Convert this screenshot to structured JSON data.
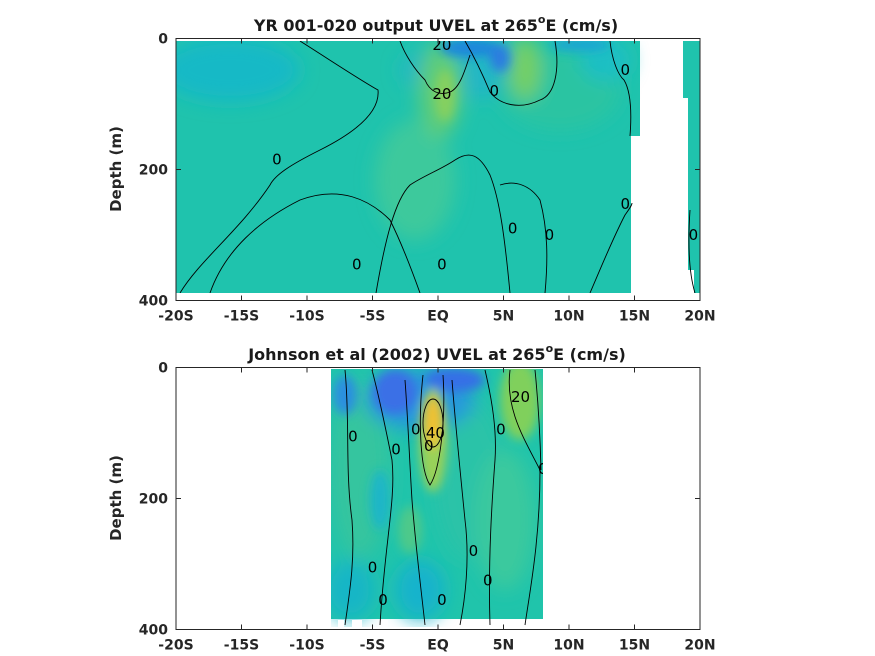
{
  "chart_data": [
    {
      "type": "heatmap",
      "title": "YR 001-020 output UVEL at 265",
      "title_sup": "o",
      "title_rest": "E (cm/s)",
      "xlabel": "",
      "ylabel": "Depth (m)",
      "xlim": [
        -20,
        20
      ],
      "ylim": [
        0,
        400
      ],
      "y_reversed": true,
      "x_ticks": [
        -20,
        -15,
        -10,
        -5,
        0,
        5,
        10,
        15,
        20
      ],
      "x_tick_labels": [
        "-20S",
        "-15S",
        "-10S",
        "-5S",
        "EQ",
        "5N",
        "10N",
        "15N",
        "20N"
      ],
      "y_ticks": [
        0,
        200,
        400
      ],
      "y_tick_labels": [
        "0",
        "200",
        "400"
      ],
      "contour_interval": 20,
      "contour_labels": [
        {
          "text": "20",
          "lat": 0.3,
          "depth": 10
        },
        {
          "text": "20",
          "lat": 0.3,
          "depth": 85
        },
        {
          "text": "0",
          "lat": -12.3,
          "depth": 185
        },
        {
          "text": "0",
          "lat": 4.3,
          "depth": 80
        },
        {
          "text": "0",
          "lat": 14.3,
          "depth": 48
        },
        {
          "text": "0",
          "lat": 14.3,
          "depth": 253
        },
        {
          "text": "0",
          "lat": 5.7,
          "depth": 290
        },
        {
          "text": "0",
          "lat": 8.5,
          "depth": 300
        },
        {
          "text": "0",
          "lat": -6.2,
          "depth": 345
        },
        {
          "text": "0",
          "lat": 0.3,
          "depth": 345
        },
        {
          "text": "0",
          "lat": 19.5,
          "depth": 300
        }
      ],
      "data_lat_range": [
        -19.8,
        14.9
      ],
      "data_depth_range": [
        0,
        388
      ]
    },
    {
      "type": "heatmap",
      "title": "Johnson et al (2002) UVEL at 265",
      "title_sup": "o",
      "title_rest": "E (cm/s)",
      "xlabel": "",
      "ylabel": "Depth (m)",
      "xlim": [
        -20,
        20
      ],
      "ylim": [
        0,
        400
      ],
      "y_reversed": true,
      "x_ticks": [
        -20,
        -15,
        -10,
        -5,
        0,
        5,
        10,
        15,
        20
      ],
      "x_tick_labels": [
        "-20S",
        "-15S",
        "-10S",
        "-5S",
        "EQ",
        "5N",
        "10N",
        "15N",
        "20N"
      ],
      "y_ticks": [
        0,
        200,
        400
      ],
      "y_tick_labels": [
        "0",
        "200",
        "400"
      ],
      "contour_interval": 20,
      "contour_labels": [
        {
          "text": "20",
          "lat": 6.3,
          "depth": 45
        },
        {
          "text": "40",
          "lat": -0.2,
          "depth": 100
        },
        {
          "text": "0",
          "lat": -6.5,
          "depth": 105
        },
        {
          "text": "0",
          "lat": -3.2,
          "depth": 125
        },
        {
          "text": "0",
          "lat": -1.7,
          "depth": 95
        },
        {
          "text": "0",
          "lat": -0.7,
          "depth": 120
        },
        {
          "text": "0",
          "lat": 4.8,
          "depth": 95
        },
        {
          "text": "0",
          "lat": 8.0,
          "depth": 155
        },
        {
          "text": "0",
          "lat": 2.7,
          "depth": 280
        },
        {
          "text": "0",
          "lat": 3.8,
          "depth": 325
        },
        {
          "text": "0",
          "lat": -5.0,
          "depth": 305
        },
        {
          "text": "0",
          "lat": -4.2,
          "depth": 355
        },
        {
          "text": "0",
          "lat": 0.3,
          "depth": 355
        }
      ],
      "data_lat_range": [
        -7.8,
        8.0
      ],
      "data_depth_range": [
        0,
        390
      ]
    }
  ],
  "colors": {
    "background_field": "#20c4ac",
    "negative_strong": "#3a6fe6",
    "negative_weak": "#1aa3d8",
    "positive_weak": "#68cf6e",
    "positive_strong": "#f2c232",
    "contour": "#000000",
    "axis": "#262626"
  }
}
